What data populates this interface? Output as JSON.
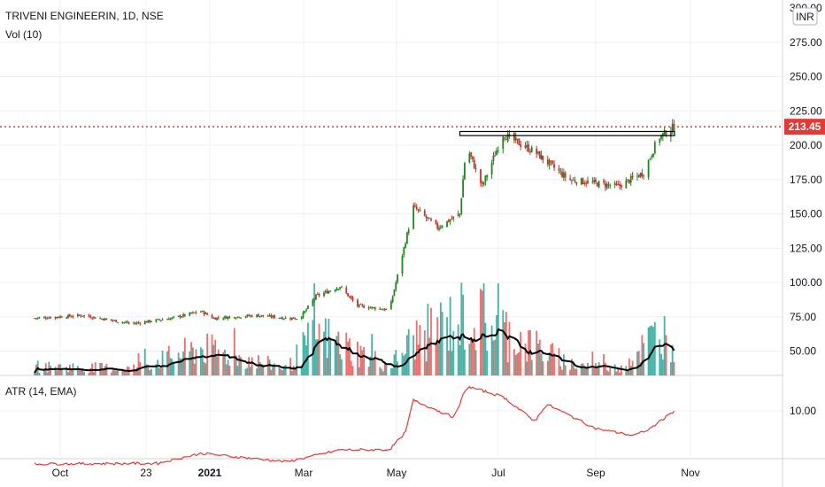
{
  "header": {
    "symbol": "TRIVENI ENGINEERIN, 1D, NSE",
    "volume_label": "Vol (10)",
    "atr_label": "ATR (14, EMA)",
    "currency": "INR"
  },
  "colors": {
    "up": "#26a69a",
    "down": "#ef5350",
    "candle_up": "#1b8a1b",
    "candle_down": "#d32f2f",
    "vol_ma": "#000000",
    "atr": "#e53935",
    "price_line": "#e53935",
    "badge_bg": "#e53935",
    "resistance_box": "#000000"
  },
  "chart_data": [
    {
      "type": "candlestick",
      "title": "TRIVENI ENGINEERIN, 1D, NSE",
      "y_axis_ticks": [
        "275.00",
        "250.00",
        "225.00",
        "200.00",
        "175.00",
        "150.00",
        "125.00",
        "100.00",
        "75.00",
        "50.00"
      ],
      "y_top_tick_partial": "300.00",
      "ylim": [
        35,
        300
      ],
      "last_price": "213.45",
      "x_axis_labels": [
        "Oct",
        "23",
        "2021",
        "Mar",
        "May",
        "Jul",
        "Sep",
        "Nov"
      ],
      "resistance_zone": {
        "low": 207,
        "high": 210
      },
      "series_close": [
        {
          "date": "2020-09-15",
          "value": 74
        },
        {
          "date": "2020-10-15",
          "value": 76
        },
        {
          "date": "2020-11-15",
          "value": 70
        },
        {
          "date": "2020-12-10",
          "value": 74
        },
        {
          "date": "2020-12-28",
          "value": 79
        },
        {
          "date": "2021-01-05",
          "value": 74
        },
        {
          "date": "2021-02-01",
          "value": 76
        },
        {
          "date": "2021-02-20",
          "value": 74
        },
        {
          "date": "2021-02-28",
          "value": 74
        },
        {
          "date": "2021-03-10",
          "value": 90
        },
        {
          "date": "2021-03-25",
          "value": 97
        },
        {
          "date": "2021-04-05",
          "value": 83
        },
        {
          "date": "2021-04-25",
          "value": 80
        },
        {
          "date": "2021-05-10",
          "value": 155
        },
        {
          "date": "2021-05-25",
          "value": 140
        },
        {
          "date": "2021-06-08",
          "value": 150
        },
        {
          "date": "2021-06-12",
          "value": 200
        },
        {
          "date": "2021-06-22",
          "value": 170
        },
        {
          "date": "2021-07-05",
          "value": 208
        },
        {
          "date": "2021-07-25",
          "value": 195
        },
        {
          "date": "2021-08-15",
          "value": 175
        },
        {
          "date": "2021-09-15",
          "value": 170
        },
        {
          "date": "2021-10-01",
          "value": 180
        },
        {
          "date": "2021-10-10",
          "value": 205
        },
        {
          "date": "2021-10-20",
          "value": 213.45
        }
      ]
    },
    {
      "type": "bar",
      "title": "Vol (10)",
      "note": "volume histogram with 10-period moving average (no scale shown)",
      "relative_volume": [
        {
          "date": "2020-09-15",
          "value": 0.15
        },
        {
          "date": "2020-11-15",
          "value": 0.12
        },
        {
          "date": "2020-12-28",
          "value": 0.45
        },
        {
          "date": "2021-02-20",
          "value": 0.12
        },
        {
          "date": "2021-03-10",
          "value": 0.7
        },
        {
          "date": "2021-04-25",
          "value": 0.15
        },
        {
          "date": "2021-05-10",
          "value": 0.6
        },
        {
          "date": "2021-06-12",
          "value": 1.0
        },
        {
          "date": "2021-07-05",
          "value": 0.75
        },
        {
          "date": "2021-08-15",
          "value": 0.2
        },
        {
          "date": "2021-09-15",
          "value": 0.12
        },
        {
          "date": "2021-10-10",
          "value": 0.7
        }
      ]
    },
    {
      "type": "line",
      "title": "ATR (14, EMA)",
      "y_axis_ticks": [
        "10.00"
      ],
      "series": [
        {
          "date": "2020-09-15",
          "value": 2.5
        },
        {
          "date": "2020-12-01",
          "value": 2.6
        },
        {
          "date": "2020-12-28",
          "value": 4.0
        },
        {
          "date": "2021-02-20",
          "value": 2.8
        },
        {
          "date": "2021-03-25",
          "value": 4.5
        },
        {
          "date": "2021-04-25",
          "value": 4.5
        },
        {
          "date": "2021-05-05",
          "value": 7.0
        },
        {
          "date": "2021-05-10",
          "value": 11.5
        },
        {
          "date": "2021-06-05",
          "value": 9.0
        },
        {
          "date": "2021-06-12",
          "value": 13.5
        },
        {
          "date": "2021-07-05",
          "value": 12.0
        },
        {
          "date": "2021-07-25",
          "value": 8.5
        },
        {
          "date": "2021-08-01",
          "value": 11.0
        },
        {
          "date": "2021-09-01",
          "value": 7.5
        },
        {
          "date": "2021-09-25",
          "value": 6.5
        },
        {
          "date": "2021-10-05",
          "value": 7.5
        },
        {
          "date": "2021-10-20",
          "value": 10.0
        }
      ]
    }
  ]
}
